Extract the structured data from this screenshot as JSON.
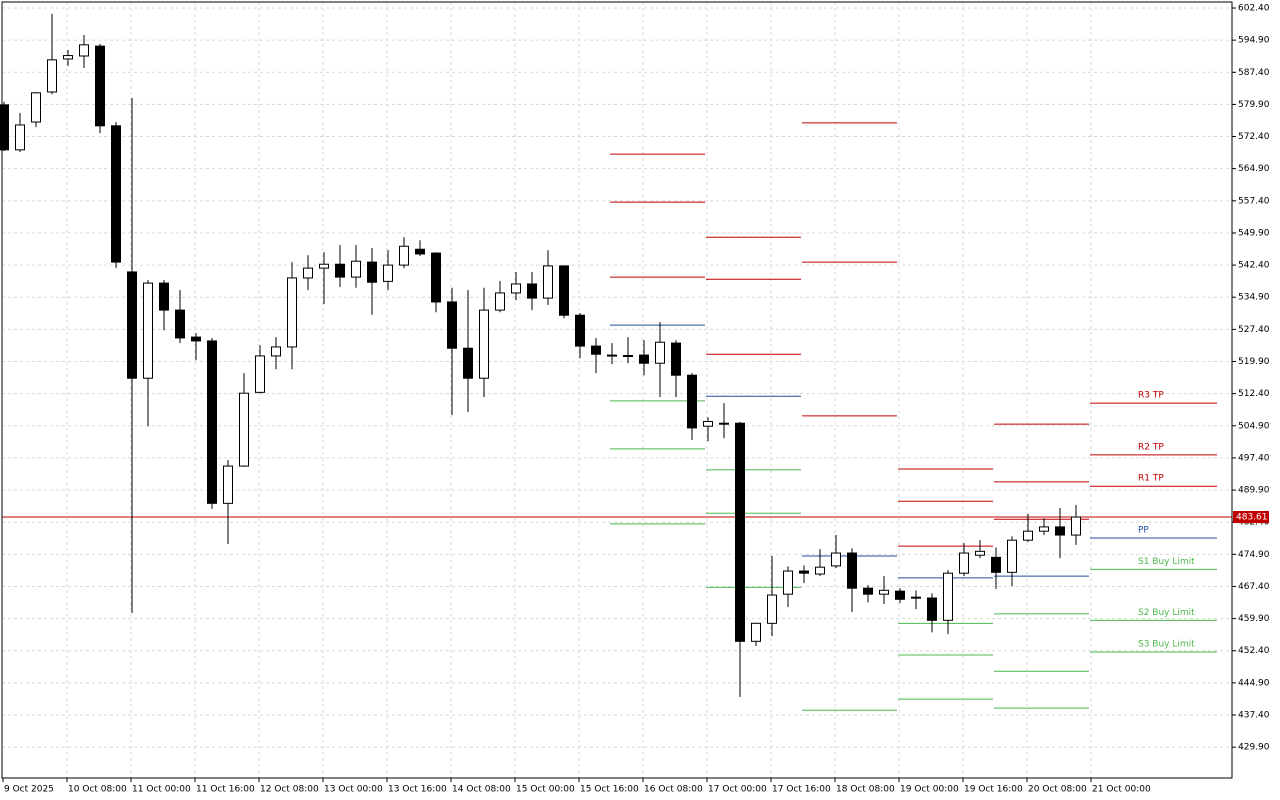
{
  "chart_data": {
    "type": "candlestick",
    "categories": [
      "9 Oct 2025",
      null,
      null,
      null,
      "10 Oct 08:00",
      null,
      null,
      null,
      "11 Oct 00:00",
      null,
      null,
      null,
      "11 Oct 16:00",
      null,
      null,
      null,
      "12 Oct 08:00",
      null,
      null,
      null,
      "13 Oct 00:00",
      null,
      null,
      null,
      "13 Oct 16:00",
      null,
      null,
      null,
      "14 Oct 08:00",
      null,
      null,
      null,
      "15 Oct 00:00",
      null,
      null,
      null,
      "15 Oct 16:00",
      null,
      null,
      null,
      "16 Oct 08:00",
      null,
      null,
      null,
      "17 Oct 00:00",
      null,
      null,
      null,
      "17 Oct 16:00",
      null,
      null,
      null,
      "18 Oct 08:00",
      null,
      null,
      null,
      "19 Oct 00:00",
      null,
      null,
      null,
      "19 Oct 16:00",
      null,
      null,
      null,
      "20 Oct 08:00",
      null,
      null,
      null,
      "21 Oct 00:00"
    ],
    "open": [
      579.8,
      569.3,
      575.8,
      582.8,
      590.5,
      591.2,
      593.5,
      574.9,
      540.8,
      516.0,
      538.2,
      531.9,
      525.6,
      524.7,
      486.8,
      495.5,
      512.7,
      521.2,
      523.3,
      539.4,
      541.7,
      542.6,
      539.6,
      543.1,
      538.6,
      542.4,
      546.1,
      545.2,
      533.8,
      523.0,
      516.0,
      531.9,
      535.9,
      538.0,
      534.7,
      542.2,
      530.7,
      523.5,
      521.4,
      521.3,
      521.4,
      519.5,
      524.2,
      516.7,
      504.8,
      505.5,
      505.5,
      454.6,
      458.8,
      465.6,
      471.0,
      470.3,
      472.2,
      475.2,
      467.0,
      465.6,
      466.3,
      464.9,
      464.7,
      459.5,
      470.5,
      474.7,
      474.2,
      470.7,
      478.2,
      480.3,
      481.3,
      479.4,
      null
    ],
    "high": [
      580.5,
      577.9,
      582.8,
      601.0,
      592.6,
      596.1,
      594.0,
      575.8,
      581.4,
      538.9,
      538.9,
      536.6,
      526.5,
      525.4,
      496.9,
      517.2,
      523.7,
      525.6,
      543.1,
      544.7,
      545.4,
      547.1,
      547.1,
      546.4,
      545.9,
      548.9,
      548.2,
      545.4,
      537.1,
      536.6,
      537.1,
      538.7,
      540.8,
      540.8,
      545.9,
      542.4,
      531.2,
      525.4,
      524.2,
      525.6,
      524.9,
      529.1,
      524.9,
      517.2,
      506.9,
      510.2,
      505.8,
      458.8,
      474.5,
      472.1,
      472.3,
      476.1,
      479.4,
      476.3,
      467.7,
      469.8,
      467.0,
      466.5,
      465.8,
      471.2,
      477.5,
      478.2,
      476.5,
      479.1,
      484.3,
      483.3,
      485.7,
      486.4,
      null
    ],
    "low": [
      569.0,
      568.8,
      574.6,
      582.3,
      588.9,
      588.4,
      573.2,
      541.7,
      461.2,
      504.8,
      527.2,
      524.2,
      520.2,
      485.5,
      477.3,
      495.3,
      512.5,
      518.1,
      518.1,
      536.6,
      533.3,
      537.3,
      537.1,
      530.8,
      536.6,
      541.7,
      544.5,
      531.4,
      507.4,
      508.1,
      511.6,
      531.4,
      534.2,
      531.9,
      533.1,
      530.0,
      520.7,
      517.2,
      519.3,
      519.5,
      516.7,
      511.6,
      511.6,
      501.6,
      501.3,
      502.0,
      441.6,
      453.5,
      455.8,
      462.6,
      468.2,
      469.8,
      471.7,
      461.4,
      463.7,
      463.3,
      463.5,
      462.1,
      456.7,
      456.3,
      469.8,
      474.0,
      466.8,
      467.5,
      477.8,
      479.4,
      474.0,
      477.1,
      null
    ],
    "close": [
      569.3,
      575.1,
      582.6,
      590.3,
      591.3,
      593.8,
      574.9,
      543.1,
      516.0,
      538.2,
      531.9,
      525.4,
      524.7,
      486.8,
      495.5,
      512.5,
      521.2,
      523.3,
      539.4,
      541.7,
      542.6,
      539.6,
      543.3,
      538.4,
      542.4,
      546.8,
      545.0,
      533.8,
      523.0,
      516.0,
      531.9,
      535.9,
      538.0,
      534.7,
      542.2,
      530.7,
      523.5,
      521.6,
      521.2,
      521.2,
      519.5,
      524.4,
      516.7,
      504.4,
      505.9,
      505.5,
      454.6,
      458.8,
      465.4,
      471.0,
      470.5,
      471.9,
      475.2,
      467.0,
      465.6,
      466.5,
      464.4,
      464.9,
      459.5,
      470.5,
      475.2,
      475.6,
      470.7,
      478.2,
      480.3,
      481.3,
      479.4,
      483.6,
      null
    ],
    "up_color": "#ffffff",
    "down_color": "#000000",
    "ylim": [
      422.7,
      603.8
    ],
    "yticks": [
      {
        "value": 602.4,
        "label": "602.40"
      },
      {
        "value": 594.9,
        "label": "594.90"
      },
      {
        "value": 587.4,
        "label": "587.40"
      },
      {
        "value": 579.9,
        "label": "579.90"
      },
      {
        "value": 572.4,
        "label": "572.40"
      },
      {
        "value": 564.9,
        "label": "564.90"
      },
      {
        "value": 557.4,
        "label": "557.40"
      },
      {
        "value": 549.9,
        "label": "549.90"
      },
      {
        "value": 542.4,
        "label": "542.40"
      },
      {
        "value": 534.9,
        "label": "534.90"
      },
      {
        "value": 527.4,
        "label": "527.40"
      },
      {
        "value": 519.9,
        "label": "519.90"
      },
      {
        "value": 512.4,
        "label": "512.40"
      },
      {
        "value": 504.9,
        "label": "504.90"
      },
      {
        "value": 497.4,
        "label": "497.40"
      },
      {
        "value": 489.9,
        "label": "489.90"
      },
      {
        "value": 482.4,
        "label": "482.40"
      },
      {
        "value": 474.9,
        "label": "474.90"
      },
      {
        "value": 467.4,
        "label": "467.40"
      },
      {
        "value": 459.9,
        "label": "459.90"
      },
      {
        "value": 452.4,
        "label": "452.40"
      },
      {
        "value": 444.9,
        "label": "444.90"
      },
      {
        "value": 437.4,
        "label": "437.40"
      },
      {
        "value": 429.9,
        "label": "429.90"
      }
    ],
    "grid": true,
    "levels": [
      {
        "label": "R3 TP",
        "color": "#c00000",
        "values": [
          568.3,
          548.9,
          575.6,
          494.8,
          505.3,
          510.2
        ]
      },
      {
        "label": "R2 TP",
        "color": "#c00000",
        "values": [
          557.1,
          539.1,
          543.1,
          487.3,
          491.8,
          498.1
        ]
      },
      {
        "label": "R1 TP",
        "color": "#c00000",
        "values": [
          539.6,
          521.6,
          507.2,
          476.8,
          483.1,
          490.8
        ]
      },
      {
        "label": "PP",
        "color": "#1f4e9c",
        "values": [
          528.4,
          511.8,
          474.5,
          469.4,
          469.8,
          478.7
        ]
      },
      {
        "label": "S1 Buy Limit",
        "color": "#4cb84c",
        "values": [
          510.7,
          494.6,
          438.5,
          458.8,
          461.0,
          471.4
        ]
      },
      {
        "label": "S2 Buy Limit",
        "color": "#4cb84c",
        "values": [
          499.5,
          484.5,
          null,
          451.4,
          447.6,
          459.5
        ]
      },
      {
        "label": "S3 Buy Limit",
        "color": "#4cb84c",
        "values": [
          482.0,
          467.2,
          null,
          441.1,
          439.0,
          452.1
        ]
      }
    ],
    "current_price": 483.61,
    "current_price_color": "#c00000"
  }
}
